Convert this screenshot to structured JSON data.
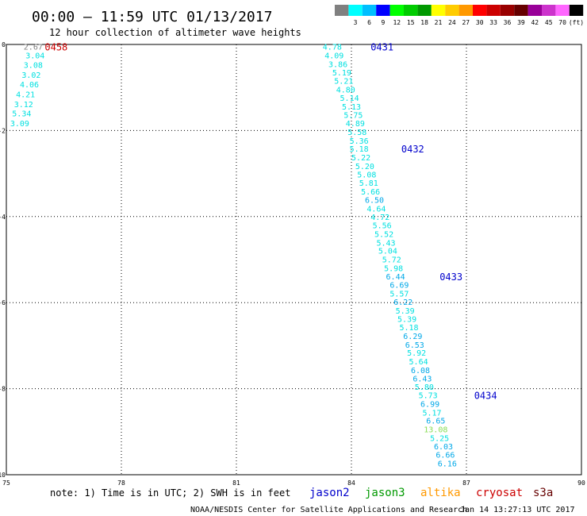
{
  "header": {
    "title": "00:00 – 11:59 UTC 01/13/2017",
    "subtitle": "12 hour collection of altimeter wave heights"
  },
  "legend": {
    "bins": [
      {
        "label": "",
        "color": "#808080"
      },
      {
        "label": "3",
        "color": "#00ffff"
      },
      {
        "label": "6",
        "color": "#00bfff"
      },
      {
        "label": "9",
        "color": "#0000ff"
      },
      {
        "label": "12",
        "color": "#00ff00"
      },
      {
        "label": "15",
        "color": "#00cc00"
      },
      {
        "label": "18",
        "color": "#009900"
      },
      {
        "label": "21",
        "color": "#ffff00"
      },
      {
        "label": "24",
        "color": "#ffcc00"
      },
      {
        "label": "27",
        "color": "#ff9900"
      },
      {
        "label": "30",
        "color": "#ff0000"
      },
      {
        "label": "33",
        "color": "#cc0000"
      },
      {
        "label": "36",
        "color": "#990000"
      },
      {
        "label": "39",
        "color": "#660000"
      },
      {
        "label": "42",
        "color": "#990099"
      },
      {
        "label": "45",
        "color": "#cc33cc"
      },
      {
        "label": "70",
        "color": "#ff66ff"
      },
      {
        "label": "(ft)",
        "color": "#000000"
      }
    ]
  },
  "chart_data": {
    "type": "scatter",
    "title": "00:00 – 11:59 UTC 01/13/2017",
    "subtitle": "12 hour collection of altimeter wave heights",
    "xlim": [
      75,
      90
    ],
    "ylim": [
      -10,
      0
    ],
    "x_ticks": [
      "75",
      "78",
      "81",
      "84",
      "87",
      "90"
    ],
    "y_ticks": [
      "0",
      "-2",
      "-4",
      "-6",
      "-8",
      "-10"
    ],
    "grid": true,
    "color_scale": "swh_feet",
    "tracks": [
      {
        "satellite": "jason2",
        "points": [
          {
            "x": 75.7,
            "y": -0.05,
            "v": "2.67"
          },
          {
            "x": 75.75,
            "y": -0.25,
            "v": "3.04"
          },
          {
            "x": 75.7,
            "y": -0.47,
            "v": "3.08"
          },
          {
            "x": 75.65,
            "y": -0.7,
            "v": "3.02"
          },
          {
            "x": 75.6,
            "y": -0.92,
            "v": "4.06"
          },
          {
            "x": 75.5,
            "y": -1.15,
            "v": "4.21"
          },
          {
            "x": 75.45,
            "y": -1.38,
            "v": "3.12"
          },
          {
            "x": 75.4,
            "y": -1.6,
            "v": "5.34"
          },
          {
            "x": 75.35,
            "y": -1.83,
            "v": "3.09"
          }
        ]
      },
      {
        "satellite": "jason2",
        "points": [
          {
            "x": 83.5,
            "y": -0.05,
            "v": "4.78"
          },
          {
            "x": 83.55,
            "y": -0.25,
            "v": "4.09"
          },
          {
            "x": 83.65,
            "y": -0.45,
            "v": "3.86"
          },
          {
            "x": 83.75,
            "y": -0.65,
            "v": "5.19"
          },
          {
            "x": 83.8,
            "y": -0.84,
            "v": "5.21"
          },
          {
            "x": 83.85,
            "y": -1.04,
            "v": "4.80"
          },
          {
            "x": 83.95,
            "y": -1.24,
            "v": "5.14"
          },
          {
            "x": 84.0,
            "y": -1.44,
            "v": "5.13"
          },
          {
            "x": 84.05,
            "y": -1.63,
            "v": "5.75"
          },
          {
            "x": 84.1,
            "y": -1.83,
            "v": "4.89"
          },
          {
            "x": 84.15,
            "y": -2.03,
            "v": "5.58"
          },
          {
            "x": 84.2,
            "y": -2.23,
            "v": "5.36"
          },
          {
            "x": 84.2,
            "y": -2.42,
            "v": "5.18"
          },
          {
            "x": 84.25,
            "y": -2.62,
            "v": "5.22"
          },
          {
            "x": 84.35,
            "y": -2.82,
            "v": "5.20"
          },
          {
            "x": 84.4,
            "y": -3.02,
            "v": "5.08"
          },
          {
            "x": 84.45,
            "y": -3.21,
            "v": "5.81"
          },
          {
            "x": 84.5,
            "y": -3.41,
            "v": "5.66"
          },
          {
            "x": 84.6,
            "y": -3.61,
            "v": "6.50"
          },
          {
            "x": 84.65,
            "y": -3.81,
            "v": "4.64"
          },
          {
            "x": 84.75,
            "y": -4.0,
            "v": "4.72"
          },
          {
            "x": 84.8,
            "y": -4.2,
            "v": "5.56"
          },
          {
            "x": 84.85,
            "y": -4.4,
            "v": "5.52"
          },
          {
            "x": 84.9,
            "y": -4.6,
            "v": "5.43"
          },
          {
            "x": 84.95,
            "y": -4.79,
            "v": "5.04"
          },
          {
            "x": 85.05,
            "y": -4.99,
            "v": "5.72"
          },
          {
            "x": 85.1,
            "y": -5.19,
            "v": "5.98"
          },
          {
            "x": 85.15,
            "y": -5.39,
            "v": "6.44"
          },
          {
            "x": 85.25,
            "y": -5.58,
            "v": "6.69"
          },
          {
            "x": 85.25,
            "y": -5.78,
            "v": "5.57"
          },
          {
            "x": 85.35,
            "y": -5.98,
            "v": "6.22"
          },
          {
            "x": 85.4,
            "y": -6.18,
            "v": "5.39"
          },
          {
            "x": 85.45,
            "y": -6.37,
            "v": "5.39"
          },
          {
            "x": 85.5,
            "y": -6.57,
            "v": "5.18"
          },
          {
            "x": 85.6,
            "y": -6.77,
            "v": "6.29"
          },
          {
            "x": 85.65,
            "y": -6.97,
            "v": "6.53"
          },
          {
            "x": 85.7,
            "y": -7.16,
            "v": "5.92"
          },
          {
            "x": 85.75,
            "y": -7.36,
            "v": "5.64"
          },
          {
            "x": 85.8,
            "y": -7.56,
            "v": "6.08"
          },
          {
            "x": 85.85,
            "y": -7.76,
            "v": "6.43"
          },
          {
            "x": 85.9,
            "y": -7.95,
            "v": "5.80"
          },
          {
            "x": 86.0,
            "y": -8.15,
            "v": "5.73"
          },
          {
            "x": 86.05,
            "y": -8.35,
            "v": "6.99"
          },
          {
            "x": 86.1,
            "y": -8.55,
            "v": "5.17"
          },
          {
            "x": 86.2,
            "y": -8.74,
            "v": "6.65"
          },
          {
            "x": 86.2,
            "y": -8.94,
            "v": "13.08"
          },
          {
            "x": 86.3,
            "y": -9.14,
            "v": "5.25"
          },
          {
            "x": 86.4,
            "y": -9.34,
            "v": "6.03"
          },
          {
            "x": 86.45,
            "y": -9.53,
            "v": "6.66"
          },
          {
            "x": 86.5,
            "y": -9.73,
            "v": "6.16"
          }
        ]
      }
    ],
    "pass_labels": [
      {
        "text": "0458",
        "x": 76.3,
        "y": -0.05,
        "satellite": "cryosat"
      },
      {
        "text": "0431",
        "x": 84.8,
        "y": -0.05,
        "satellite": "jason2"
      },
      {
        "text": "0432",
        "x": 85.6,
        "y": -2.42,
        "satellite": "jason2"
      },
      {
        "text": "0433",
        "x": 86.6,
        "y": -5.39,
        "satellite": "jason2"
      },
      {
        "text": "0434",
        "x": 87.5,
        "y": -8.15,
        "satellite": "jason2"
      }
    ]
  },
  "footer": {
    "note": "note: 1) Time is in UTC; 2) SWH is in feet",
    "satellites": [
      {
        "name": "jason2",
        "color": "#0000cc"
      },
      {
        "name": "jason3",
        "color": "#009900"
      },
      {
        "name": "altika",
        "color": "#ff9900"
      },
      {
        "name": "cryosat",
        "color": "#cc0000"
      },
      {
        "name": "s3a",
        "color": "#660000"
      }
    ],
    "credit": "NOAA/NESDIS Center for Satellite Applications and Research",
    "timestamp": "Jan 14 13:27:13 UTC 2017"
  }
}
